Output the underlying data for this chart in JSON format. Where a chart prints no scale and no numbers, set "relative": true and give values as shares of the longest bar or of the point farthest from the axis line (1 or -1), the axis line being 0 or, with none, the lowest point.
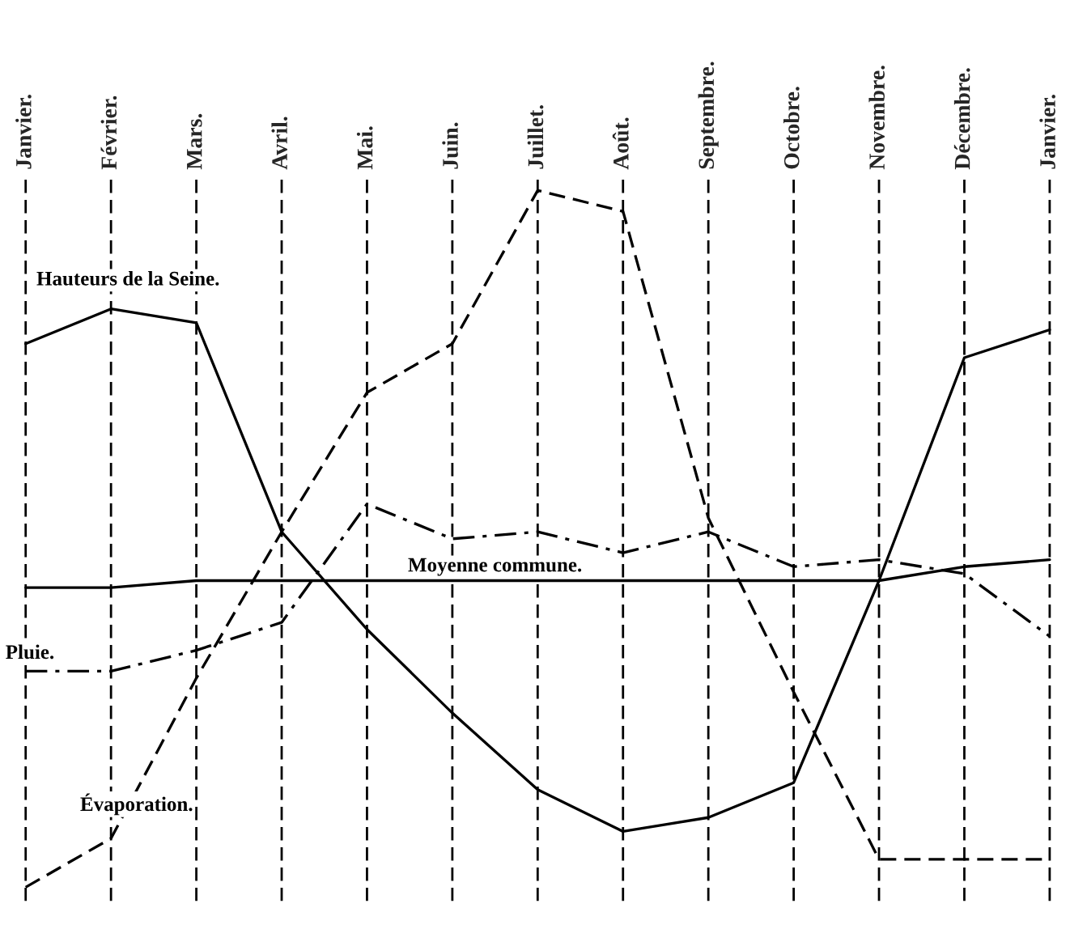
{
  "chart_data": {
    "type": "line",
    "relative": true,
    "categories": [
      "Janvier.",
      "Février.",
      "Mars.",
      "Avril.",
      "Mai.",
      "Juin.",
      "Juillet.",
      "Août.",
      "Septembre.",
      "Octobre.",
      "Novembre.",
      "Décembre.",
      "Janvier."
    ],
    "series": [
      {
        "name": "Hauteurs de la Seine.",
        "color": "#000000",
        "line_style": "solid",
        "values": [
          0.78,
          0.83,
          0.81,
          0.51,
          0.37,
          0.25,
          0.14,
          0.08,
          0.1,
          0.15,
          0.44,
          0.76,
          0.8
        ]
      },
      {
        "name": "Pluie.",
        "color": "#000000",
        "line_style": "dashdot",
        "values": [
          0.31,
          0.31,
          0.34,
          0.38,
          0.55,
          0.5,
          0.51,
          0.48,
          0.51,
          0.46,
          0.47,
          0.45,
          0.36
        ]
      },
      {
        "name": "Évaporation.",
        "color": "#000000",
        "line_style": "dashed",
        "values": [
          0.0,
          0.07,
          0.3,
          0.51,
          0.71,
          0.78,
          1.0,
          0.97,
          0.53,
          0.28,
          0.04,
          0.04,
          0.04
        ]
      },
      {
        "name": "Moyenne commune.",
        "color": "#000000",
        "line_style": "solid",
        "values": [
          0.43,
          0.43,
          0.44,
          0.44,
          0.44,
          0.44,
          0.44,
          0.44,
          0.44,
          0.44,
          0.44,
          0.46,
          0.47
        ]
      }
    ],
    "grid": "x",
    "marker": "none"
  }
}
